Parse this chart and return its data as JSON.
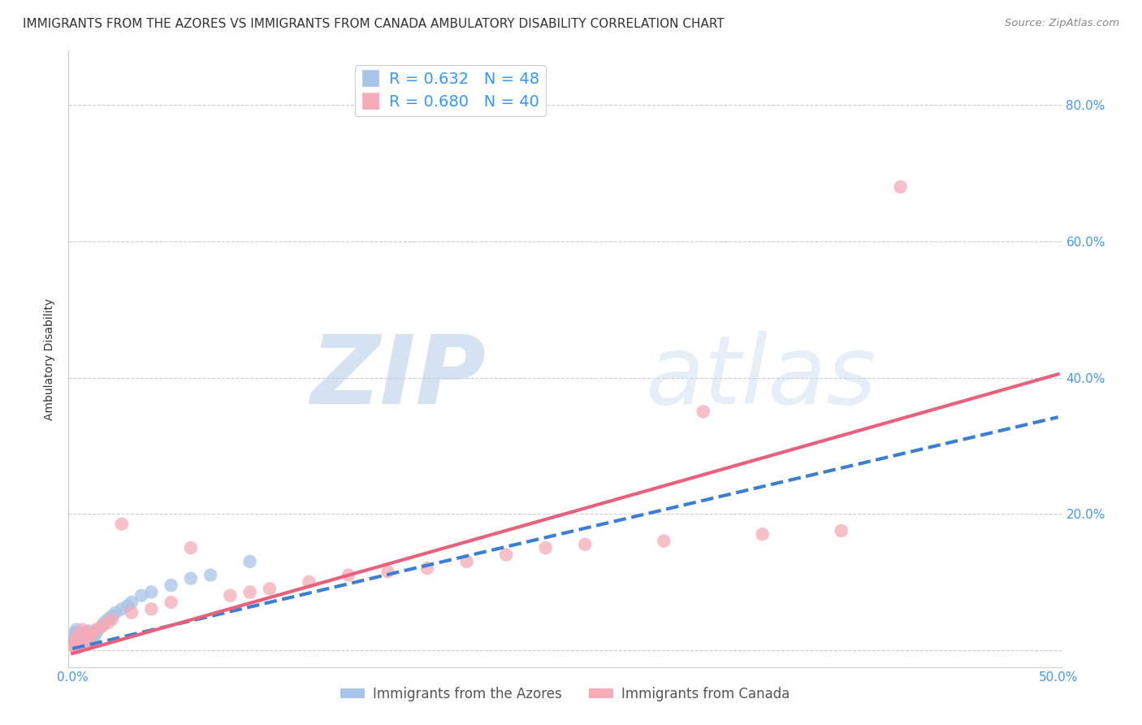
{
  "title": "IMMIGRANTS FROM THE AZORES VS IMMIGRANTS FROM CANADA AMBULATORY DISABILITY CORRELATION CHART",
  "source": "Source: ZipAtlas.com",
  "ylabel": "Ambulatory Disability",
  "xlim": [
    -0.002,
    0.502
  ],
  "ylim": [
    -0.025,
    0.88
  ],
  "xticks": [
    0.0,
    0.1,
    0.2,
    0.3,
    0.4,
    0.5
  ],
  "yticks": [
    0.0,
    0.2,
    0.4,
    0.6,
    0.8
  ],
  "xtick_labels": [
    "0.0%",
    "",
    "",
    "",
    "",
    "50.0%"
  ],
  "ytick_labels_right": [
    "",
    "20.0%",
    "40.0%",
    "60.0%",
    "80.0%"
  ],
  "azores_R": 0.632,
  "azores_N": 48,
  "canada_R": 0.68,
  "canada_N": 40,
  "azores_color": "#a8c4e8",
  "canada_color": "#f5abb8",
  "azores_line_color": "#3a7fd5",
  "canada_line_color": "#e8607a",
  "background_color": "#ffffff",
  "grid_color": "#cccccc",
  "watermark": "ZIPatlas",
  "watermark_color_zip": "#b0c8e8",
  "watermark_color_atlas": "#c8d8ee",
  "title_fontsize": 11,
  "axis_label_fontsize": 10,
  "tick_fontsize": 11,
  "legend_fontsize": 14,
  "azores_line_intercept": 0.002,
  "azores_line_slope": 0.68,
  "canada_line_intercept": -0.005,
  "canada_line_slope": 0.82,
  "azores_x": [
    0.001,
    0.001,
    0.001,
    0.001,
    0.001,
    0.002,
    0.002,
    0.002,
    0.002,
    0.002,
    0.002,
    0.003,
    0.003,
    0.003,
    0.003,
    0.003,
    0.004,
    0.004,
    0.004,
    0.005,
    0.005,
    0.005,
    0.006,
    0.006,
    0.007,
    0.007,
    0.008,
    0.008,
    0.009,
    0.01,
    0.01,
    0.011,
    0.012,
    0.013,
    0.015,
    0.016,
    0.018,
    0.02,
    0.022,
    0.025,
    0.028,
    0.03,
    0.035,
    0.04,
    0.05,
    0.06,
    0.07,
    0.09
  ],
  "azores_y": [
    0.005,
    0.01,
    0.015,
    0.02,
    0.025,
    0.005,
    0.01,
    0.015,
    0.02,
    0.025,
    0.03,
    0.005,
    0.008,
    0.012,
    0.018,
    0.025,
    0.008,
    0.015,
    0.022,
    0.01,
    0.018,
    0.025,
    0.012,
    0.02,
    0.015,
    0.025,
    0.018,
    0.028,
    0.022,
    0.015,
    0.025,
    0.02,
    0.025,
    0.03,
    0.035,
    0.04,
    0.045,
    0.05,
    0.055,
    0.06,
    0.065,
    0.07,
    0.08,
    0.085,
    0.095,
    0.105,
    0.11,
    0.13
  ],
  "canada_x": [
    0.001,
    0.001,
    0.002,
    0.002,
    0.002,
    0.003,
    0.003,
    0.004,
    0.005,
    0.005,
    0.006,
    0.007,
    0.008,
    0.009,
    0.01,
    0.012,
    0.015,
    0.018,
    0.02,
    0.025,
    0.03,
    0.04,
    0.05,
    0.06,
    0.08,
    0.09,
    0.1,
    0.12,
    0.14,
    0.16,
    0.18,
    0.2,
    0.22,
    0.24,
    0.26,
    0.3,
    0.32,
    0.35,
    0.39,
    0.42
  ],
  "canada_y": [
    0.005,
    0.01,
    0.003,
    0.015,
    0.02,
    0.005,
    0.012,
    0.008,
    0.015,
    0.03,
    0.018,
    0.022,
    0.025,
    0.01,
    0.025,
    0.03,
    0.035,
    0.04,
    0.045,
    0.185,
    0.055,
    0.06,
    0.07,
    0.15,
    0.08,
    0.085,
    0.09,
    0.1,
    0.11,
    0.115,
    0.12,
    0.13,
    0.14,
    0.15,
    0.155,
    0.16,
    0.35,
    0.17,
    0.175,
    0.68
  ]
}
